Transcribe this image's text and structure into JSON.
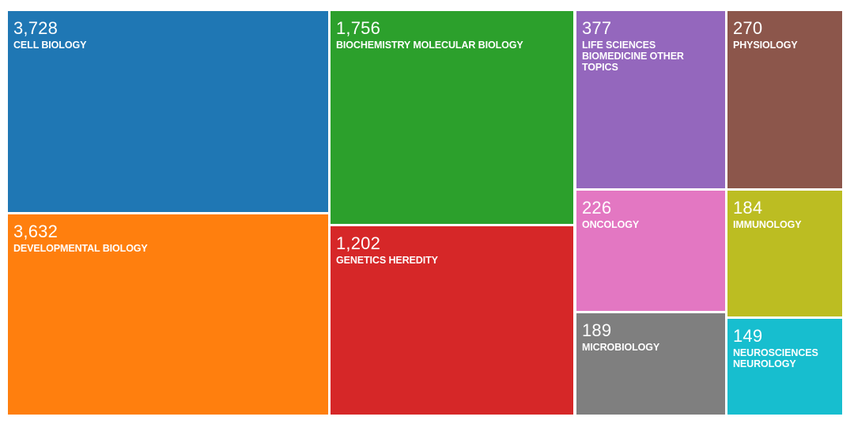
{
  "chart_data": {
    "type": "treemap",
    "title": "",
    "items": [
      {
        "label": "CELL BIOLOGY",
        "value": 3728,
        "display": "3,728",
        "color": "#1f77b4"
      },
      {
        "label": "DEVELOPMENTAL BIOLOGY",
        "value": 3632,
        "display": "3,632",
        "color": "#ff7f0e"
      },
      {
        "label": "BIOCHEMISTRY MOLECULAR BIOLOGY",
        "value": 1756,
        "display": "1,756",
        "color": "#2ca02c"
      },
      {
        "label": "GENETICS HEREDITY",
        "value": 1202,
        "display": "1,202",
        "color": "#d62728"
      },
      {
        "label": "LIFE SCIENCES BIOMEDICINE OTHER TOPICS",
        "value": 377,
        "display": "377",
        "color": "#9467bd"
      },
      {
        "label": "PHYSIOLOGY",
        "value": 270,
        "display": "270",
        "color": "#8c564b"
      },
      {
        "label": "ONCOLOGY",
        "value": 226,
        "display": "226",
        "color": "#e377c2"
      },
      {
        "label": "IMMUNOLOGY",
        "value": 184,
        "display": "184",
        "color": "#bcbd22"
      },
      {
        "label": "MICROBIOLOGY",
        "value": 189,
        "display": "189",
        "color": "#7f7f7f"
      },
      {
        "label": "NEUROSCIENCES NEUROLOGY",
        "value": 149,
        "display": "149",
        "color": "#17becf"
      }
    ]
  }
}
